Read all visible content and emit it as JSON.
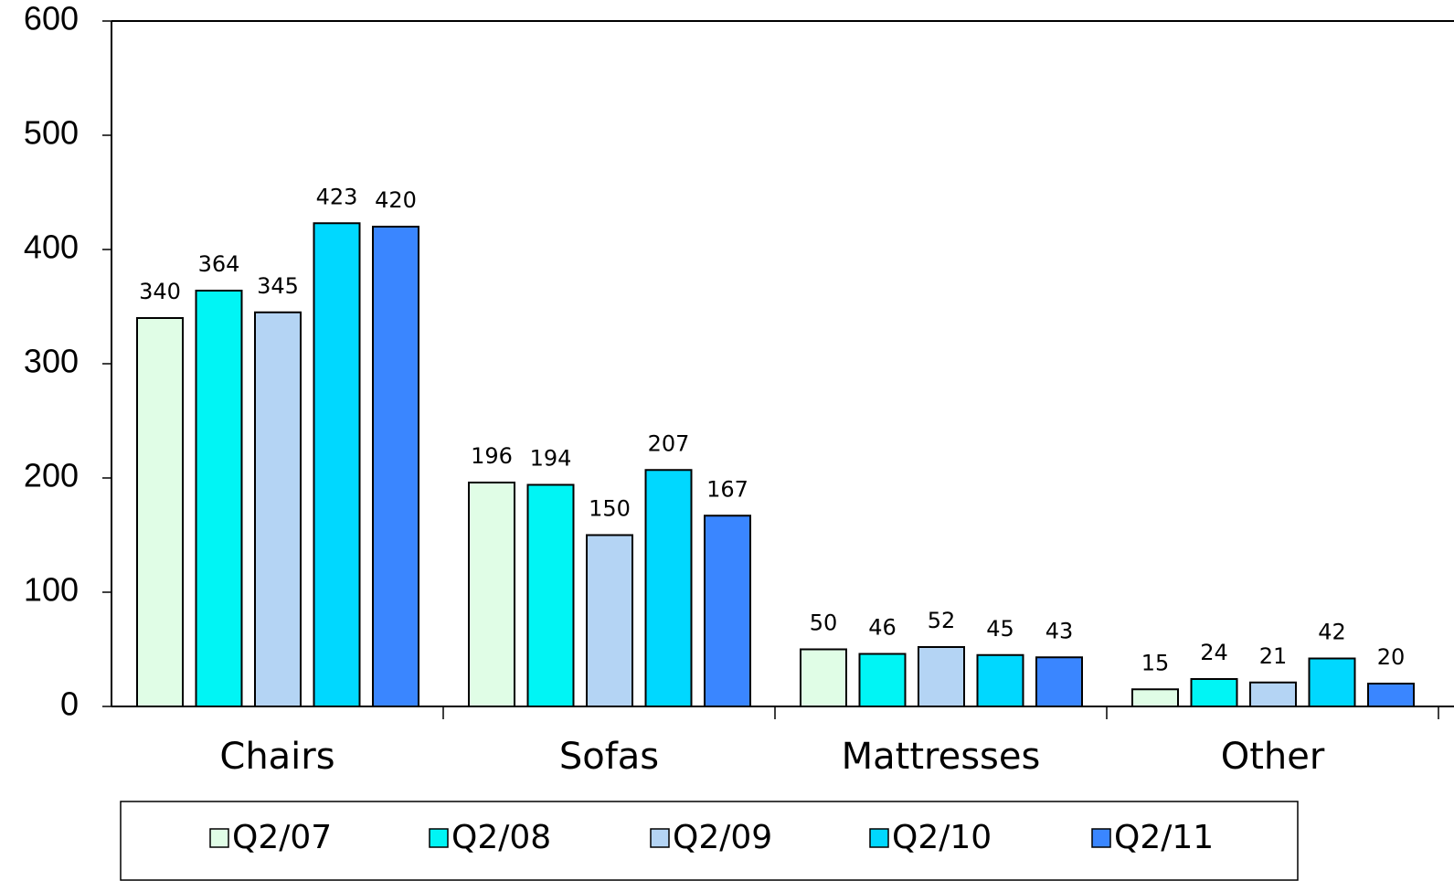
{
  "chart_data": {
    "type": "bar",
    "categories": [
      "Chairs",
      "Sofas",
      "Mattresses",
      "Other"
    ],
    "series": [
      {
        "name": "Q2/07",
        "color": "#e0fde6",
        "values": [
          340,
          196,
          50,
          15
        ]
      },
      {
        "name": "Q2/08",
        "color": "#00f5f5",
        "values": [
          364,
          194,
          46,
          24
        ]
      },
      {
        "name": "Q2/09",
        "color": "#b4d4f4",
        "values": [
          345,
          150,
          52,
          21
        ]
      },
      {
        "name": "Q2/10",
        "color": "#00d8ff",
        "values": [
          423,
          207,
          45,
          42
        ]
      },
      {
        "name": "Q2/11",
        "color": "#3a86ff",
        "values": [
          420,
          167,
          43,
          20
        ]
      }
    ],
    "ylim": [
      0,
      600
    ],
    "yticks": [
      0,
      100,
      200,
      300,
      400,
      500,
      600
    ],
    "legend": "bottom"
  }
}
